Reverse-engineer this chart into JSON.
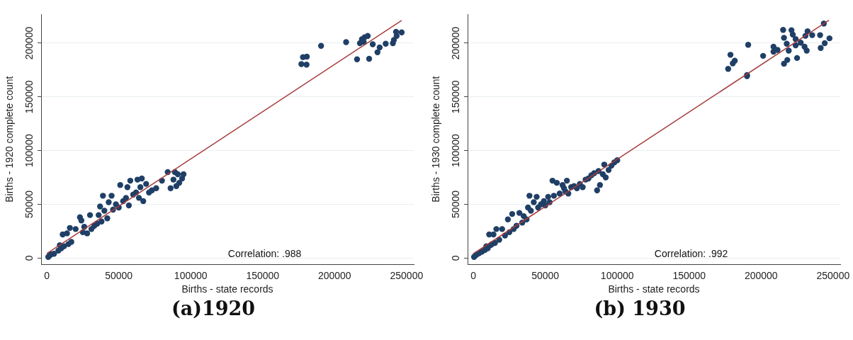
{
  "chart_data": [
    {
      "type": "scatter",
      "title": "(a)1920",
      "xlabel": "Births - state records",
      "ylabel": "Births - 1920 complete count",
      "annotations": [
        "Correlation: .988"
      ],
      "grid": "y",
      "marker": "circle",
      "xlim": [
        -4000,
        255000
      ],
      "ylim": [
        -6000,
        227000
      ],
      "xticks": [
        0,
        50000,
        100000,
        150000,
        200000,
        250000
      ],
      "yticks": [
        0,
        50000,
        100000,
        150000,
        200000
      ],
      "series": [
        {
          "color": "#1f3f66",
          "x": [
            1000,
            2000,
            3000,
            5000,
            8000,
            9000,
            10000,
            12000,
            11000,
            14000,
            15000,
            16000,
            17000,
            20000,
            23000,
            24000,
            25000,
            26000,
            28000,
            30000,
            31000,
            33000,
            35000,
            36000,
            37000,
            38000,
            39000,
            40000,
            42000,
            43000,
            45000,
            46000,
            48000,
            50000,
            51000,
            53000,
            55000,
            56000,
            57000,
            58000,
            60000,
            62000,
            63000,
            64000,
            65000,
            66000,
            67000,
            69000,
            71000,
            73000,
            76000,
            80000,
            84000,
            86000,
            88000,
            89000,
            90000,
            91000,
            92000,
            94000,
            95000,
            176900,
            178000,
            180700,
            180500,
            190600,
            208000,
            215600,
            217600,
            219000,
            220800,
            223000,
            220200,
            224000,
            226500,
            229800,
            231300,
            235500,
            240500,
            241200,
            243100,
            242700,
            246600
          ],
          "values": [
            1000,
            2500,
            3500,
            4000,
            7000,
            12000,
            9000,
            11000,
            22000,
            23000,
            13000,
            28000,
            15000,
            27000,
            38000,
            35000,
            24000,
            29000,
            23000,
            40000,
            27000,
            30000,
            32000,
            40000,
            48000,
            34000,
            58000,
            44000,
            37000,
            52000,
            58000,
            45000,
            50000,
            47000,
            68000,
            53000,
            56000,
            66000,
            49000,
            72000,
            59000,
            61000,
            73000,
            56000,
            66000,
            74000,
            53000,
            69000,
            61000,
            63000,
            65000,
            72000,
            80000,
            65000,
            73000,
            80000,
            67000,
            78000,
            70000,
            74000,
            78000,
            180500,
            187000,
            187500,
            180000,
            197500,
            201000,
            185000,
            200000,
            203700,
            205500,
            206700,
            201200,
            185500,
            199000,
            191500,
            196000,
            199500,
            200000,
            203000,
            206700,
            210500,
            210000
          ]
        },
        {
          "type": "line",
          "color": "#a63c3c",
          "marker": "none",
          "x": [
            0,
            246600
          ],
          "values": [
            4200,
            221200
          ]
        }
      ]
    },
    {
      "type": "scatter",
      "title": "(b) 1930",
      "xlabel": "Births - state records",
      "ylabel": "Births - 1930 complete count",
      "annotations": [
        "Correlation: .992"
      ],
      "grid": "y",
      "marker": "circle",
      "xlim": [
        -4000,
        255000
      ],
      "ylim": [
        -6000,
        227000
      ],
      "xticks": [
        0,
        50000,
        100000,
        150000,
        200000,
        250000
      ],
      "yticks": [
        0,
        50000,
        100000,
        150000,
        200000
      ],
      "series": [
        {
          "color": "#1f3f66",
          "x": [
            500,
            1500,
            2500,
            4000,
            6000,
            8000,
            9000,
            10000,
            11000,
            12000,
            13000,
            14000,
            15000,
            16000,
            18000,
            20000,
            22000,
            24000,
            25000,
            27000,
            28000,
            30000,
            32000,
            34000,
            35000,
            37000,
            38000,
            39000,
            40000,
            42000,
            44000,
            45000,
            47000,
            49000,
            50000,
            52000,
            53000,
            55000,
            56000,
            58000,
            60000,
            62000,
            63000,
            64000,
            65000,
            66000,
            68000,
            70000,
            72000,
            74000,
            76000,
            78000,
            80000,
            82000,
            84000,
            86000,
            87000,
            88000,
            90000,
            91000,
            92000,
            94000,
            96000,
            98000,
            100000,
            177100,
            178700,
            180300,
            181700,
            190200,
            190200,
            191000,
            201400,
            208600,
            208600,
            211400,
            215300,
            215900,
            215900,
            218200,
            217800,
            219200,
            221100,
            222000,
            224000,
            225000,
            224000,
            227500,
            230200,
            231700,
            232300,
            230800,
            235500,
            241000,
            241400,
            243600,
            244200,
            247500
          ],
          "values": [
            1000,
            2500,
            3500,
            4500,
            6000,
            7500,
            11000,
            9000,
            22000,
            12000,
            13000,
            22000,
            14000,
            27000,
            17000,
            27000,
            21000,
            36000,
            24000,
            41000,
            27000,
            30000,
            42000,
            33000,
            39000,
            36000,
            47000,
            58000,
            44000,
            52000,
            57000,
            47000,
            50000,
            53000,
            49000,
            57000,
            52000,
            72000,
            58000,
            70000,
            60000,
            68000,
            65000,
            62000,
            72000,
            60000,
            66000,
            67000,
            65000,
            69000,
            66000,
            73000,
            74000,
            77000,
            79000,
            63000,
            81000,
            68000,
            78000,
            87000,
            75000,
            82000,
            86000,
            89000,
            91000,
            176100,
            189200,
            181200,
            183700,
            170300,
            169300,
            198500,
            188200,
            196700,
            192000,
            193700,
            212300,
            205000,
            180900,
            184400,
            199500,
            193000,
            212100,
            208000,
            203800,
            186200,
            198000,
            200500,
            196700,
            193000,
            211000,
            206800,
            207500,
            207500,
            195500,
            218300,
            200000,
            204500
          ]
        },
        {
          "type": "line",
          "color": "#a63c3c",
          "marker": "none",
          "x": [
            0,
            247100
          ],
          "values": [
            4000,
            221300
          ]
        }
      ]
    }
  ]
}
